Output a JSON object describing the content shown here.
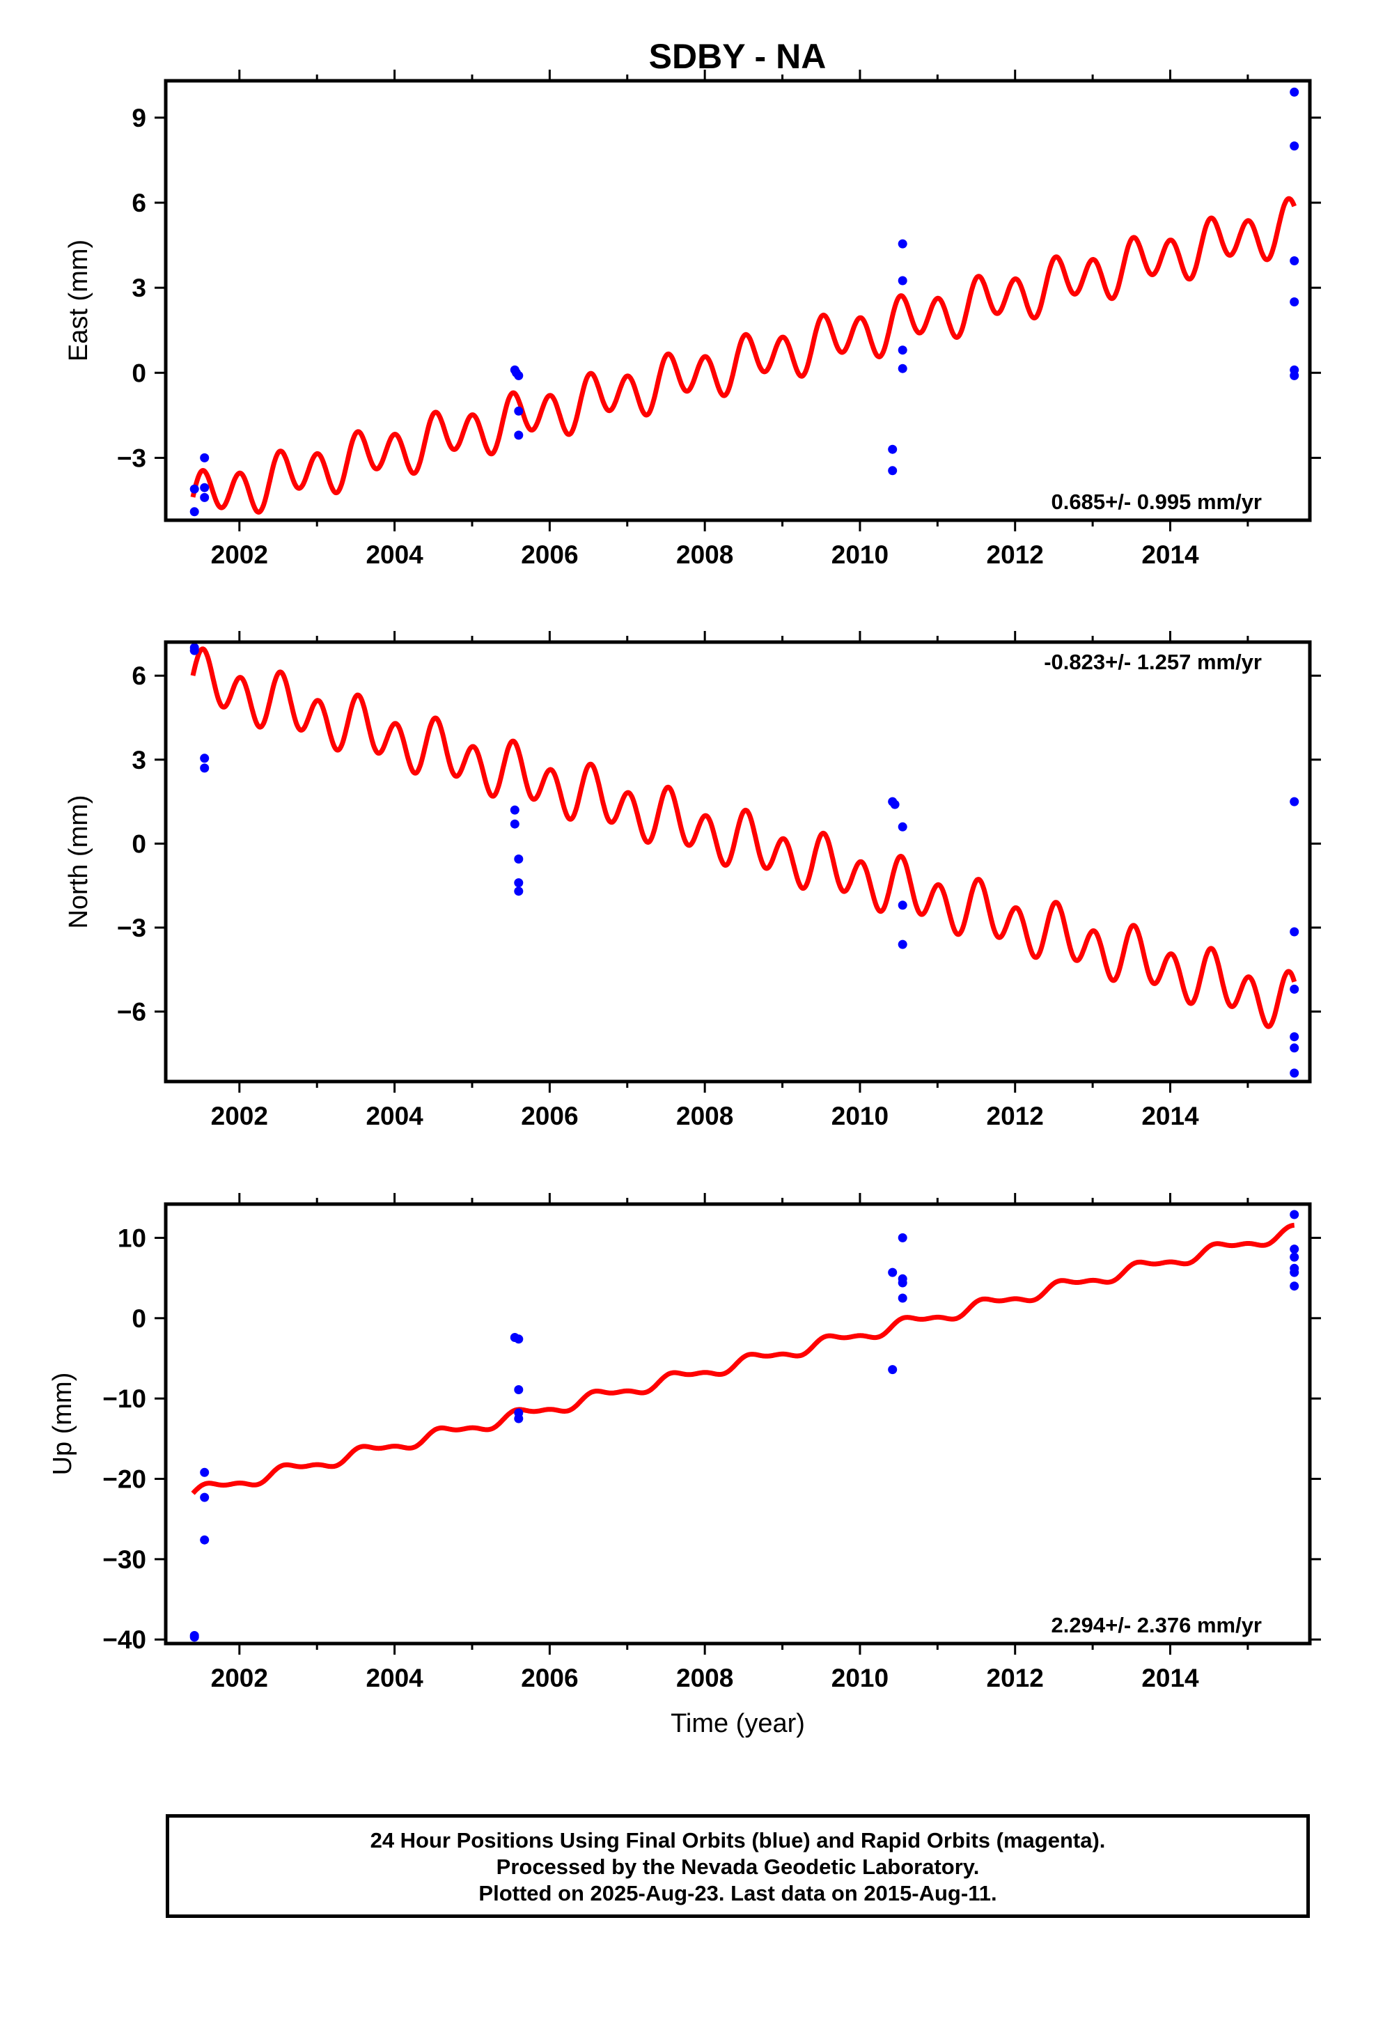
{
  "chart_data": [
    {
      "type": "scatter",
      "title": "SDBY - NA",
      "ylabel": "East (mm)",
      "xlabel": "",
      "xlim": [
        2001.05,
        2015.8
      ],
      "ylim": [
        -5.2,
        10.3
      ],
      "xticks": [
        2002,
        2004,
        2006,
        2008,
        2010,
        2012,
        2014
      ],
      "xtick_labels": [
        "2002",
        "2004",
        "2006",
        "2008",
        "2010",
        "2012",
        "2014"
      ],
      "yticks": [
        -3,
        0,
        3,
        6,
        9
      ],
      "ytick_labels": [
        "−3",
        "0",
        "3",
        "6",
        "9"
      ],
      "rate_text": "0.685+/- 0.995 mm/yr",
      "rate_position": "bottom-right",
      "point_color": "#0000ff",
      "line_color": "#ff0000",
      "model": {
        "t_ref": 2001.4,
        "y_ref": -4.5,
        "slope": 0.685,
        "annual_amp": 0.32,
        "annual_phase": 0.0,
        "semiannual_amp": 0.75,
        "semiannual_phase": 0.15
      },
      "points": [
        {
          "x": 2001.42,
          "y": -4.1
        },
        {
          "x": 2001.42,
          "y": -4.9
        },
        {
          "x": 2001.55,
          "y": -3.0
        },
        {
          "x": 2001.55,
          "y": -4.05
        },
        {
          "x": 2001.55,
          "y": -4.4
        },
        {
          "x": 2005.55,
          "y": 0.1
        },
        {
          "x": 2005.57,
          "y": 0.0
        },
        {
          "x": 2005.6,
          "y": -0.1
        },
        {
          "x": 2005.6,
          "y": -1.35
        },
        {
          "x": 2005.6,
          "y": -2.2
        },
        {
          "x": 2010.42,
          "y": -2.7
        },
        {
          "x": 2010.42,
          "y": -3.45
        },
        {
          "x": 2010.55,
          "y": 4.55
        },
        {
          "x": 2010.55,
          "y": 3.25
        },
        {
          "x": 2010.55,
          "y": 0.8
        },
        {
          "x": 2010.55,
          "y": 0.15
        },
        {
          "x": 2015.6,
          "y": 9.9
        },
        {
          "x": 2015.6,
          "y": 8.0
        },
        {
          "x": 2015.6,
          "y": 3.95
        },
        {
          "x": 2015.6,
          "y": 2.5
        },
        {
          "x": 2015.6,
          "y": 0.1
        },
        {
          "x": 2015.6,
          "y": -0.1
        }
      ]
    },
    {
      "type": "scatter",
      "title": "",
      "ylabel": "North (mm)",
      "xlabel": "",
      "xlim": [
        2001.05,
        2015.8
      ],
      "ylim": [
        -8.5,
        7.2
      ],
      "xticks": [
        2002,
        2004,
        2006,
        2008,
        2010,
        2012,
        2014
      ],
      "xtick_labels": [
        "2002",
        "2004",
        "2006",
        "2008",
        "2010",
        "2012",
        "2014"
      ],
      "yticks": [
        -6,
        -3,
        0,
        3,
        6
      ],
      "ytick_labels": [
        "−6",
        "−3",
        "0",
        "3",
        "6"
      ],
      "rate_text": "-0.823+/- 1.257 mm/yr",
      "rate_position": "top-right",
      "point_color": "#0000ff",
      "line_color": "#ff0000",
      "model": {
        "t_ref": 2001.4,
        "y_ref": 5.9,
        "slope": -0.823,
        "annual_amp": 0.35,
        "annual_phase": 0.3,
        "semiannual_amp": 0.85,
        "semiannual_phase": 0.0
      },
      "points": [
        {
          "x": 2001.42,
          "y": 7.0
        },
        {
          "x": 2001.42,
          "y": 6.9
        },
        {
          "x": 2001.55,
          "y": 3.05
        },
        {
          "x": 2001.55,
          "y": 2.7
        },
        {
          "x": 2005.55,
          "y": 1.2
        },
        {
          "x": 2005.55,
          "y": 0.7
        },
        {
          "x": 2005.6,
          "y": -0.55
        },
        {
          "x": 2005.6,
          "y": -1.4
        },
        {
          "x": 2005.6,
          "y": -1.7
        },
        {
          "x": 2010.42,
          "y": 1.5
        },
        {
          "x": 2010.45,
          "y": 1.4
        },
        {
          "x": 2010.55,
          "y": 0.6
        },
        {
          "x": 2010.55,
          "y": -2.2
        },
        {
          "x": 2010.55,
          "y": -3.6
        },
        {
          "x": 2015.6,
          "y": 1.5
        },
        {
          "x": 2015.6,
          "y": -3.15
        },
        {
          "x": 2015.6,
          "y": -5.2
        },
        {
          "x": 2015.6,
          "y": -6.9
        },
        {
          "x": 2015.6,
          "y": -7.3
        },
        {
          "x": 2015.6,
          "y": -8.2
        }
      ]
    },
    {
      "type": "scatter",
      "title": "",
      "ylabel": "Up (mm)",
      "xlabel": "Time (year)",
      "xlim": [
        2001.05,
        2015.8
      ],
      "ylim": [
        -40.5,
        14.2
      ],
      "xticks": [
        2002,
        2004,
        2006,
        2008,
        2010,
        2012,
        2014
      ],
      "xtick_labels": [
        "2002",
        "2004",
        "2006",
        "2008",
        "2010",
        "2012",
        "2014"
      ],
      "yticks": [
        -40,
        -30,
        -20,
        -10,
        0,
        10
      ],
      "ytick_labels": [
        "−40",
        "−30",
        "−20",
        "−10",
        "0",
        "10"
      ],
      "rate_text": "2.294+/- 2.376 mm/yr",
      "rate_position": "bottom-right",
      "point_color": "#0000ff",
      "line_color": "#ff0000",
      "model": {
        "t_ref": 2001.4,
        "y_ref": -21.8,
        "slope": 2.294,
        "annual_amp": 0.65,
        "annual_phase": 0.0,
        "semiannual_amp": 0.3,
        "semiannual_phase": 0.0
      },
      "points": [
        {
          "x": 2001.42,
          "y": -39.5
        },
        {
          "x": 2001.42,
          "y": -39.7
        },
        {
          "x": 2001.55,
          "y": -19.2
        },
        {
          "x": 2001.55,
          "y": -22.3
        },
        {
          "x": 2001.55,
          "y": -27.6
        },
        {
          "x": 2005.55,
          "y": -2.4
        },
        {
          "x": 2005.6,
          "y": -2.6
        },
        {
          "x": 2005.6,
          "y": -8.9
        },
        {
          "x": 2005.6,
          "y": -11.8
        },
        {
          "x": 2005.6,
          "y": -12.5
        },
        {
          "x": 2010.42,
          "y": 5.7
        },
        {
          "x": 2010.42,
          "y": -6.4
        },
        {
          "x": 2010.55,
          "y": 10.0
        },
        {
          "x": 2010.55,
          "y": 4.9
        },
        {
          "x": 2010.55,
          "y": 4.4
        },
        {
          "x": 2010.55,
          "y": 2.5
        },
        {
          "x": 2015.6,
          "y": 12.9
        },
        {
          "x": 2015.6,
          "y": 8.6
        },
        {
          "x": 2015.6,
          "y": 7.6
        },
        {
          "x": 2015.6,
          "y": 6.2
        },
        {
          "x": 2015.6,
          "y": 5.7
        },
        {
          "x": 2015.6,
          "y": 4.0
        }
      ]
    }
  ],
  "caption": {
    "line1": "24 Hour Positions Using Final Orbits (blue) and Rapid Orbits (magenta).",
    "line2": "Processed by the Nevada Geodetic Laboratory.",
    "line3": "Plotted on 2025-Aug-23. Last data on 2015-Aug-11."
  }
}
